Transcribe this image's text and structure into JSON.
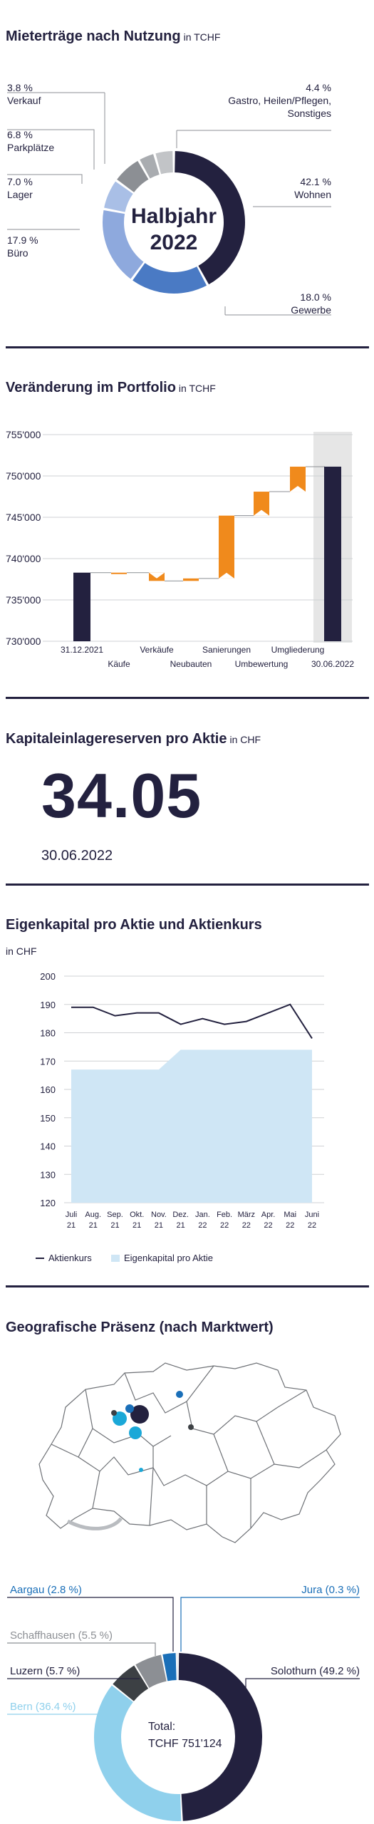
{
  "colors": {
    "navy": "#23213f",
    "blue": "#4a7ac4",
    "light_blue": "#8ea9dd",
    "grey": "#8c8f94",
    "light_grey": "#b8babd",
    "orange": "#f08a1c",
    "pale_blue": "#cfe6f5",
    "sky": "#8fd0ec",
    "cyan": "#1aa8d8",
    "dark_grey": "#3c4044"
  },
  "section1": {
    "title": "Mieterträge nach Nutzung",
    "unit": "in TCHF",
    "center_line1": "Halbjahr",
    "center_line2": "2022",
    "labels": {
      "verkauf_pct": "3.8 %",
      "verkauf_name": "Verkauf",
      "parkplaetze_pct": "6.8 %",
      "parkplaetze_name": "Parkplätze",
      "lager_pct": "7.0 %",
      "lager_name": "Lager",
      "buero_pct": "17.9 %",
      "buero_name": "Büro",
      "gastro_pct": "4.4 %",
      "gastro_name1": "Gastro, Heilen/Pflegen,",
      "gastro_name2": "Sonstiges",
      "wohnen_pct": "42.1 %",
      "wohnen_name": "Wohnen",
      "gewerbe_pct": "18.0 %",
      "gewerbe_name": "Gewerbe"
    }
  },
  "section2": {
    "title": "Veränderung im Portfolio",
    "unit": "in TCHF"
  },
  "section3": {
    "title": "Kapitaleinlagereserven pro Aktie",
    "unit": "in CHF",
    "value": "34.05",
    "date": "30.06.2022"
  },
  "section4": {
    "title": "Eigenkapital pro Aktie und Aktienkurs",
    "unit": "in CHF",
    "legend_line": "Aktienkurs",
    "legend_area": "Eigenkapital pro Aktie"
  },
  "section5": {
    "title": "Geografische Präsenz (nach Marktwert)",
    "total_line1": "Total:",
    "total_line2": "TCHF 751'124",
    "labels": {
      "aargau": "Aargau (2.8 %)",
      "jura": "Jura (0.3 %)",
      "schaffhausen": "Schaffhausen (5.5 %)",
      "luzern": "Luzern (5.7 %)",
      "solothurn": "Solothurn (49.2 %)",
      "bern": "Bern (36.4 %)"
    }
  },
  "chart_data": [
    {
      "type": "pie",
      "title": "Mieterträge nach Nutzung",
      "unit": "in TCHF",
      "categories": [
        "Wohnen",
        "Gewerbe",
        "Büro",
        "Lager",
        "Parkplätze",
        "Verkauf",
        "Gastro, Heilen/Pflegen, Sonstiges"
      ],
      "values": [
        42.1,
        18.0,
        17.9,
        7.0,
        6.8,
        3.8,
        4.4
      ],
      "colors": [
        "#23213f",
        "#4a7ac4",
        "#8ea9dd",
        "#a9bfe6",
        "#8c8f94",
        "#a9acb0",
        "#c2c4c7"
      ]
    },
    {
      "type": "bar",
      "title": "Veränderung im Portfolio",
      "unit": "in TCHF",
      "categories": [
        "31.12.2021",
        "Käufe",
        "Verkäufe",
        "Neubauten",
        "Sanierungen",
        "Umbewertung",
        "Umgliederung",
        "30.06.2022"
      ],
      "ylim": [
        730000,
        755000
      ],
      "yticks": [
        "730'000",
        "735'000",
        "740'000",
        "745'000",
        "750'000",
        "755'000"
      ],
      "bars": [
        {
          "start": 730000,
          "end": 738300
        },
        {
          "start": 738300,
          "end": 738300
        },
        {
          "start": 738300,
          "end": 737300
        },
        {
          "start": 737300,
          "end": 737600
        },
        {
          "start": 737600,
          "end": 745200
        },
        {
          "start": 745200,
          "end": 748100
        },
        {
          "start": 748100,
          "end": 751124
        },
        {
          "start": 730000,
          "end": 751124
        }
      ]
    },
    {
      "type": "line",
      "title": "Eigenkapital pro Aktie und Aktienkurs",
      "unit": "in CHF",
      "x": [
        "Juli 21",
        "Aug. 21",
        "Sep. 21",
        "Okt. 21",
        "Nov. 21",
        "Dez. 21",
        "Jan. 22",
        "Feb. 22",
        "März 22",
        "Apr. 22",
        "Mai 22",
        "Juni 22"
      ],
      "ylim": [
        120,
        200
      ],
      "yticks": [
        120,
        130,
        140,
        150,
        160,
        170,
        180,
        190,
        200
      ],
      "series": [
        {
          "name": "Aktienkurs",
          "values": [
            189,
            189,
            186,
            187,
            187,
            183,
            185,
            183,
            184,
            187,
            190,
            178
          ]
        },
        {
          "name": "Eigenkapital pro Aktie",
          "values": [
            167,
            167,
            167,
            167,
            167,
            174,
            174,
            174,
            174,
            174,
            174,
            174
          ]
        }
      ]
    },
    {
      "type": "pie",
      "title": "Geografische Präsenz (nach Marktwert)",
      "categories": [
        "Solothurn",
        "Bern",
        "Luzern",
        "Schaffhausen",
        "Aargau",
        "Jura"
      ],
      "values": [
        49.2,
        36.4,
        5.7,
        5.5,
        2.8,
        0.3
      ],
      "colors": [
        "#23213f",
        "#8fd0ec",
        "#3c4044",
        "#8c8f94",
        "#1a6fb8",
        "#23213f"
      ]
    }
  ]
}
